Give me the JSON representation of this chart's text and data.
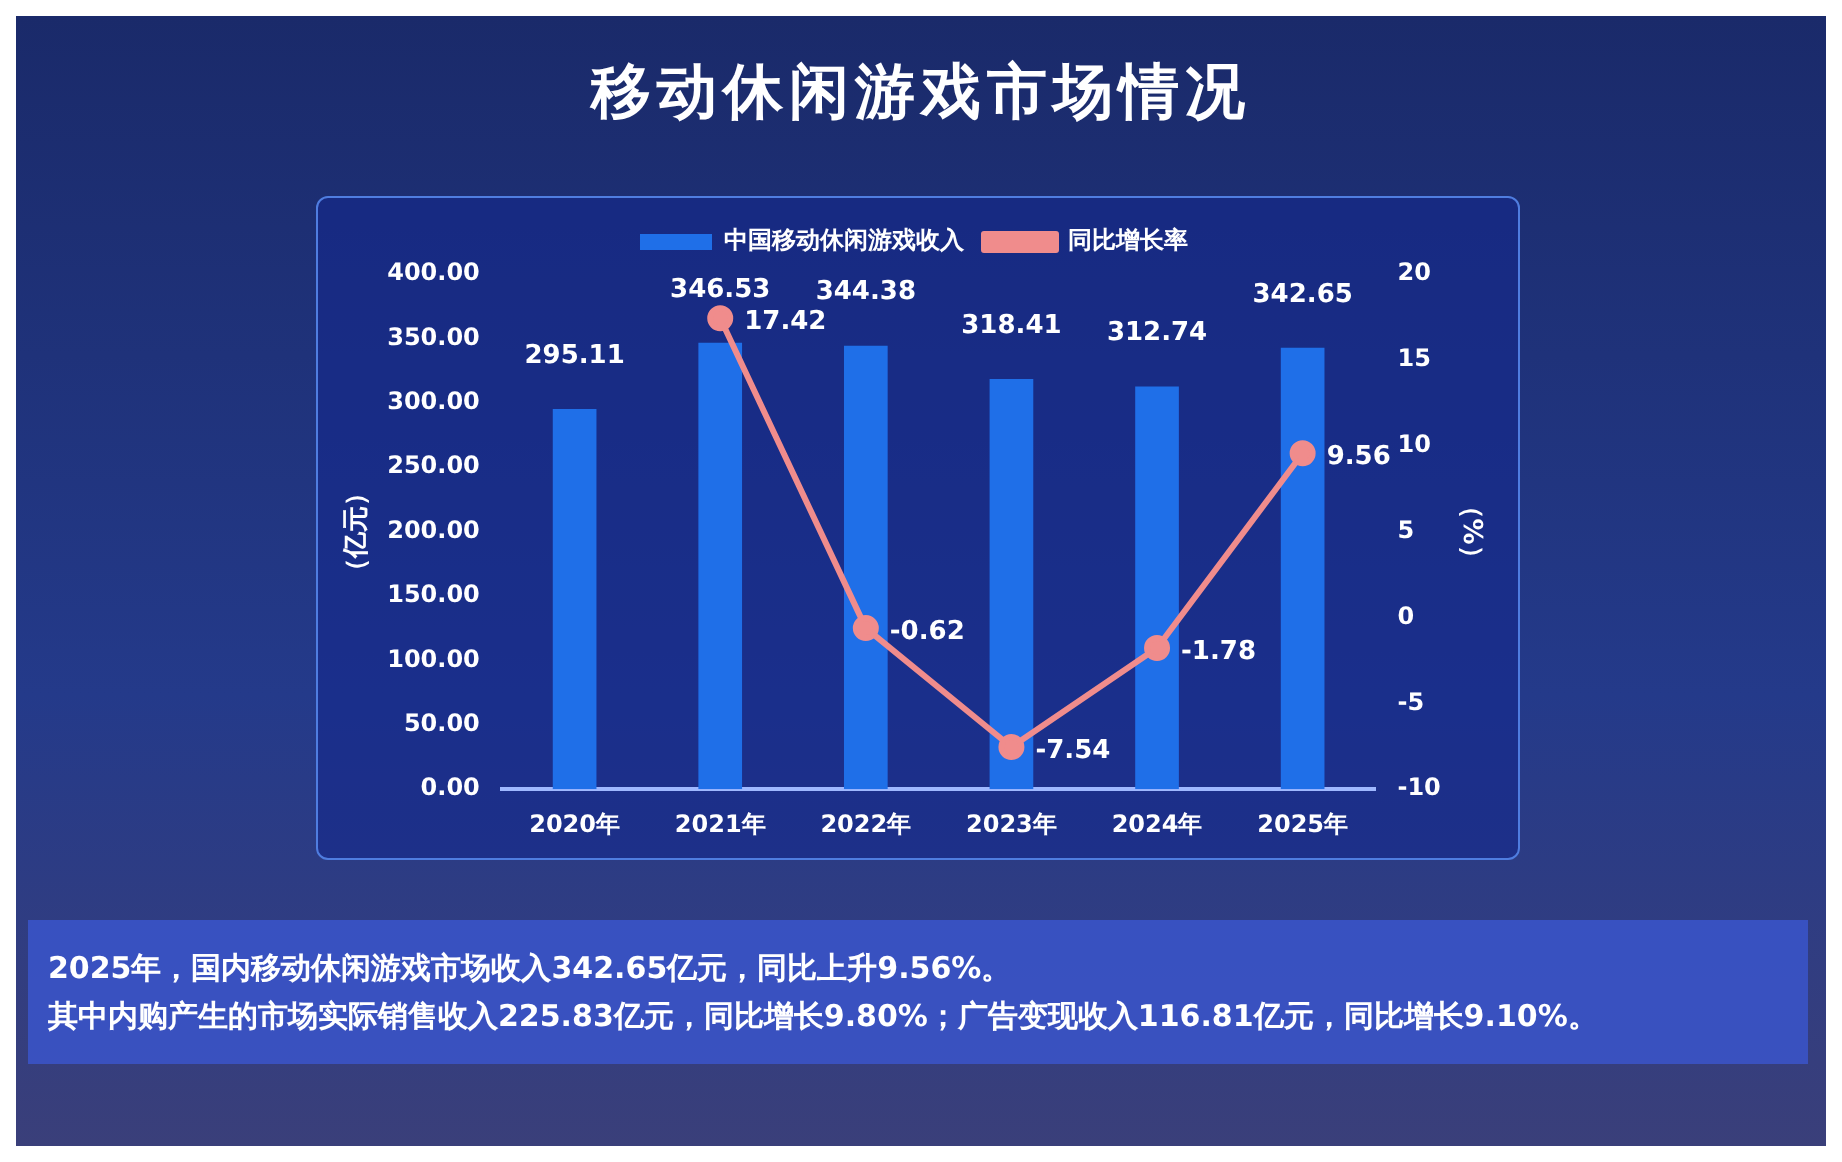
{
  "chart_data": {
    "type": "bar",
    "title": "移动休闲游戏市场情况",
    "categories": [
      "2020年",
      "2021年",
      "2022年",
      "2023年",
      "2024年",
      "2025年"
    ],
    "series": [
      {
        "name": "中国移动休闲游戏收入",
        "color": "#1f6fe8",
        "values": [
          295.11,
          346.53,
          344.38,
          318.41,
          312.74,
          342.65
        ]
      },
      {
        "name": "同比增长率",
        "type": "line",
        "axis": "y2",
        "color": "#f08c8c",
        "values": [
          null,
          17.42,
          -0.62,
          -7.54,
          -1.78,
          9.56
        ]
      }
    ],
    "ylabel": "（亿元）",
    "y2label": "（%）",
    "ylim": [
      0,
      400
    ],
    "yticks": [
      {
        "value": 0,
        "label": "0.00"
      },
      {
        "value": 50,
        "label": "50.00"
      },
      {
        "value": 100,
        "label": "100.00"
      },
      {
        "value": 150,
        "label": "150.00"
      },
      {
        "value": 200,
        "label": "200.00"
      },
      {
        "value": 250,
        "label": "250.00"
      },
      {
        "value": 300,
        "label": "300.00"
      },
      {
        "value": 350,
        "label": "350.00"
      },
      {
        "value": 400,
        "label": "400.00"
      }
    ],
    "y2lim": [
      -10,
      20
    ],
    "y2ticks": [
      -10,
      -5,
      0,
      5,
      10,
      15,
      20
    ],
    "data_labels": true,
    "legend": "top",
    "grid": false,
    "marker": "circle",
    "annotations": [
      "2025年，国内移动休闲游戏市场收入342.65亿元，同比上升9.56%。",
      "其中内购产生的市场实际销售收入225.83亿元，同比增长9.80%；广告变现收入116.81亿元，同比增长9.10%。"
    ]
  }
}
